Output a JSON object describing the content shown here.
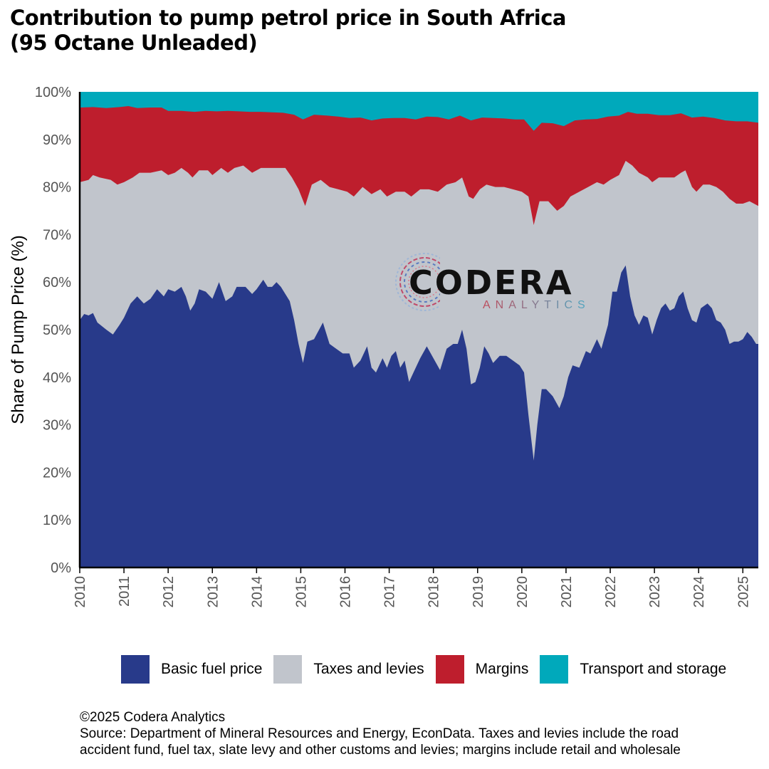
{
  "title_line1": "Contribution to pump petrol price in South Africa",
  "title_line2": "(95 Octane Unleaded)",
  "colors": {
    "basic": "#283a8a",
    "taxes": "#c1c5cc",
    "margins": "#be1e2d",
    "transport": "#00a9bb",
    "axis": "#000000",
    "tick_text": "#555555"
  },
  "logo": {
    "word": "CODERA",
    "sub": "ANALYTICS",
    "icon": "circuit-ring-icon"
  },
  "footer": {
    "line1": "©2025 Codera Analytics",
    "line2": "Source: Department of Mineral Resources and Energy, EconData. Taxes and levies include the road",
    "line3": "accident fund, fuel tax, slate levy and other customs and levies; margins include retail and wholesale"
  },
  "chart_data": {
    "type": "area",
    "stacked": true,
    "ylabel": "Share of Pump Price (%)",
    "xlabel": "",
    "ylim": [
      0,
      100
    ],
    "xlim": [
      2010.0,
      2025.35
    ],
    "y_ticks": [
      "0%",
      "10%",
      "20%",
      "30%",
      "40%",
      "50%",
      "60%",
      "70%",
      "80%",
      "90%",
      "100%"
    ],
    "x_ticks": [
      "2010",
      "2011",
      "2012",
      "2013",
      "2014",
      "2015",
      "2016",
      "2017",
      "2018",
      "2019",
      "2020",
      "2021",
      "2022",
      "2023",
      "2024",
      "2025"
    ],
    "legend_position": "bottom",
    "series": [
      {
        "name": "Basic fuel price",
        "color_key": "basic",
        "points": [
          [
            2010.0,
            52
          ],
          [
            2010.1,
            53.3
          ],
          [
            2010.2,
            53
          ],
          [
            2010.3,
            53.5
          ],
          [
            2010.4,
            51.5
          ],
          [
            2010.6,
            50
          ],
          [
            2010.75,
            49
          ],
          [
            2010.9,
            51
          ],
          [
            2011.0,
            52.5
          ],
          [
            2011.15,
            55.5
          ],
          [
            2011.3,
            57
          ],
          [
            2011.45,
            55.5
          ],
          [
            2011.6,
            56.5
          ],
          [
            2011.75,
            58.5
          ],
          [
            2011.9,
            57
          ],
          [
            2012.0,
            58.5
          ],
          [
            2012.15,
            58
          ],
          [
            2012.3,
            59
          ],
          [
            2012.4,
            57
          ],
          [
            2012.5,
            54
          ],
          [
            2012.6,
            55.5
          ],
          [
            2012.7,
            58.5
          ],
          [
            2012.85,
            58
          ],
          [
            2013.0,
            56.5
          ],
          [
            2013.15,
            60
          ],
          [
            2013.3,
            56
          ],
          [
            2013.45,
            57
          ],
          [
            2013.55,
            59
          ],
          [
            2013.75,
            59
          ],
          [
            2013.9,
            57.5
          ],
          [
            2014.0,
            58.5
          ],
          [
            2014.15,
            60.5
          ],
          [
            2014.25,
            59
          ],
          [
            2014.35,
            59
          ],
          [
            2014.45,
            60
          ],
          [
            2014.55,
            59
          ],
          [
            2014.65,
            57.5
          ],
          [
            2014.75,
            56
          ],
          [
            2014.85,
            52
          ],
          [
            2014.95,
            47
          ],
          [
            2015.05,
            43
          ],
          [
            2015.15,
            47.5
          ],
          [
            2015.3,
            48
          ],
          [
            2015.5,
            51.5
          ],
          [
            2015.65,
            47
          ],
          [
            2015.8,
            46
          ],
          [
            2015.95,
            45
          ],
          [
            2016.1,
            45
          ],
          [
            2016.2,
            42
          ],
          [
            2016.35,
            43.5
          ],
          [
            2016.5,
            46.5
          ],
          [
            2016.6,
            42
          ],
          [
            2016.7,
            41
          ],
          [
            2016.85,
            44
          ],
          [
            2016.95,
            42
          ],
          [
            2017.05,
            44.5
          ],
          [
            2017.15,
            45.5
          ],
          [
            2017.25,
            42
          ],
          [
            2017.35,
            43.5
          ],
          [
            2017.45,
            39
          ],
          [
            2017.55,
            41
          ],
          [
            2017.7,
            44
          ],
          [
            2017.85,
            46.5
          ],
          [
            2018.0,
            44
          ],
          [
            2018.15,
            41.5
          ],
          [
            2018.3,
            46
          ],
          [
            2018.45,
            47
          ],
          [
            2018.55,
            47
          ],
          [
            2018.65,
            50
          ],
          [
            2018.75,
            46
          ],
          [
            2018.85,
            38.5
          ],
          [
            2018.95,
            39
          ],
          [
            2019.05,
            42
          ],
          [
            2019.15,
            46.5
          ],
          [
            2019.25,
            45
          ],
          [
            2019.35,
            43
          ],
          [
            2019.5,
            44.5
          ],
          [
            2019.65,
            44.5
          ],
          [
            2019.8,
            43.5
          ],
          [
            2019.95,
            42.5
          ],
          [
            2020.05,
            41
          ],
          [
            2020.15,
            32
          ],
          [
            2020.27,
            22.5
          ],
          [
            2020.35,
            30
          ],
          [
            2020.45,
            37.5
          ],
          [
            2020.55,
            37.5
          ],
          [
            2020.7,
            36
          ],
          [
            2020.85,
            33.5
          ],
          [
            2020.95,
            36
          ],
          [
            2021.05,
            40
          ],
          [
            2021.15,
            42.5
          ],
          [
            2021.3,
            42
          ],
          [
            2021.45,
            45.5
          ],
          [
            2021.55,
            45
          ],
          [
            2021.7,
            48
          ],
          [
            2021.8,
            46
          ],
          [
            2021.95,
            51
          ],
          [
            2022.05,
            58
          ],
          [
            2022.15,
            58
          ],
          [
            2022.25,
            62
          ],
          [
            2022.35,
            63.5
          ],
          [
            2022.45,
            57
          ],
          [
            2022.55,
            53
          ],
          [
            2022.65,
            51
          ],
          [
            2022.75,
            53
          ],
          [
            2022.85,
            52.5
          ],
          [
            2022.95,
            49
          ],
          [
            2023.05,
            52
          ],
          [
            2023.15,
            54.5
          ],
          [
            2023.25,
            55.5
          ],
          [
            2023.35,
            54
          ],
          [
            2023.45,
            54.5
          ],
          [
            2023.55,
            57
          ],
          [
            2023.65,
            58
          ],
          [
            2023.75,
            54.5
          ],
          [
            2023.85,
            52
          ],
          [
            2023.95,
            51.5
          ],
          [
            2024.05,
            54.5
          ],
          [
            2024.2,
            55.5
          ],
          [
            2024.3,
            54.5
          ],
          [
            2024.4,
            52
          ],
          [
            2024.5,
            51.5
          ],
          [
            2024.6,
            50
          ],
          [
            2024.7,
            47
          ],
          [
            2024.8,
            47.5
          ],
          [
            2024.9,
            47.5
          ],
          [
            2025.0,
            48
          ],
          [
            2025.1,
            49.5
          ],
          [
            2025.2,
            48.5
          ],
          [
            2025.3,
            47
          ],
          [
            2025.35,
            47
          ]
        ]
      },
      {
        "name": "Taxes and levies",
        "color_key": "taxes",
        "points": [
          [
            2010.0,
            81
          ],
          [
            2010.2,
            81.5
          ],
          [
            2010.3,
            82.5
          ],
          [
            2010.45,
            82
          ],
          [
            2010.7,
            81.5
          ],
          [
            2010.85,
            80.5
          ],
          [
            2011.0,
            81
          ],
          [
            2011.2,
            82
          ],
          [
            2011.35,
            83
          ],
          [
            2011.6,
            83
          ],
          [
            2011.85,
            83.5
          ],
          [
            2012.0,
            82.5
          ],
          [
            2012.15,
            83
          ],
          [
            2012.3,
            84
          ],
          [
            2012.45,
            83
          ],
          [
            2012.55,
            82
          ],
          [
            2012.7,
            83.5
          ],
          [
            2012.9,
            83.5
          ],
          [
            2013.0,
            82.5
          ],
          [
            2013.2,
            84
          ],
          [
            2013.35,
            83
          ],
          [
            2013.5,
            84
          ],
          [
            2013.7,
            84.5
          ],
          [
            2013.9,
            83
          ],
          [
            2014.1,
            84
          ],
          [
            2014.3,
            84
          ],
          [
            2014.5,
            84
          ],
          [
            2014.65,
            84
          ],
          [
            2014.8,
            82
          ],
          [
            2014.95,
            79.5
          ],
          [
            2015.1,
            76
          ],
          [
            2015.25,
            80.5
          ],
          [
            2015.45,
            81.5
          ],
          [
            2015.65,
            80
          ],
          [
            2015.85,
            79.5
          ],
          [
            2016.05,
            79
          ],
          [
            2016.2,
            78
          ],
          [
            2016.4,
            80
          ],
          [
            2016.6,
            78.5
          ],
          [
            2016.8,
            79.5
          ],
          [
            2016.95,
            78
          ],
          [
            2017.15,
            79
          ],
          [
            2017.35,
            79
          ],
          [
            2017.5,
            78
          ],
          [
            2017.7,
            79.5
          ],
          [
            2017.9,
            79.5
          ],
          [
            2018.1,
            79
          ],
          [
            2018.3,
            80.5
          ],
          [
            2018.5,
            81
          ],
          [
            2018.65,
            82
          ],
          [
            2018.8,
            78
          ],
          [
            2018.9,
            77.5
          ],
          [
            2019.05,
            79.5
          ],
          [
            2019.2,
            80.5
          ],
          [
            2019.4,
            80
          ],
          [
            2019.6,
            80
          ],
          [
            2019.8,
            79.5
          ],
          [
            2020.0,
            79
          ],
          [
            2020.15,
            78
          ],
          [
            2020.27,
            72
          ],
          [
            2020.4,
            77
          ],
          [
            2020.6,
            77
          ],
          [
            2020.8,
            75
          ],
          [
            2020.95,
            76
          ],
          [
            2021.1,
            78
          ],
          [
            2021.3,
            79
          ],
          [
            2021.5,
            80
          ],
          [
            2021.7,
            81
          ],
          [
            2021.85,
            80.5
          ],
          [
            2022.0,
            81.5
          ],
          [
            2022.2,
            82.5
          ],
          [
            2022.35,
            85.5
          ],
          [
            2022.5,
            84.5
          ],
          [
            2022.65,
            83
          ],
          [
            2022.85,
            82
          ],
          [
            2022.95,
            81
          ],
          [
            2023.1,
            82
          ],
          [
            2023.3,
            82
          ],
          [
            2023.45,
            82
          ],
          [
            2023.6,
            83
          ],
          [
            2023.7,
            83.5
          ],
          [
            2023.85,
            80
          ],
          [
            2023.95,
            79
          ],
          [
            2024.1,
            80.5
          ],
          [
            2024.25,
            80.5
          ],
          [
            2024.4,
            80
          ],
          [
            2024.55,
            79
          ],
          [
            2024.7,
            77.5
          ],
          [
            2024.85,
            76.5
          ],
          [
            2025.0,
            76.5
          ],
          [
            2025.15,
            77
          ],
          [
            2025.35,
            76
          ]
        ]
      },
      {
        "name": "Margins",
        "color_key": "margins",
        "points": [
          [
            2010.0,
            96.7
          ],
          [
            2010.3,
            96.8
          ],
          [
            2010.6,
            96.6
          ],
          [
            2010.9,
            96.8
          ],
          [
            2011.1,
            97
          ],
          [
            2011.3,
            96.6
          ],
          [
            2011.6,
            96.7
          ],
          [
            2011.85,
            96.7
          ],
          [
            2012.0,
            96
          ],
          [
            2012.3,
            96
          ],
          [
            2012.6,
            95.8
          ],
          [
            2012.85,
            96
          ],
          [
            2013.1,
            95.9
          ],
          [
            2013.35,
            96
          ],
          [
            2013.6,
            95.9
          ],
          [
            2013.85,
            95.8
          ],
          [
            2014.1,
            95.8
          ],
          [
            2014.35,
            95.7
          ],
          [
            2014.6,
            95.6
          ],
          [
            2014.85,
            95.2
          ],
          [
            2015.05,
            94.2
          ],
          [
            2015.3,
            95.2
          ],
          [
            2015.6,
            95
          ],
          [
            2015.85,
            94.8
          ],
          [
            2016.1,
            94.5
          ],
          [
            2016.35,
            94.6
          ],
          [
            2016.6,
            94
          ],
          [
            2016.85,
            94.4
          ],
          [
            2017.1,
            94.5
          ],
          [
            2017.35,
            94.5
          ],
          [
            2017.6,
            94.2
          ],
          [
            2017.85,
            94.8
          ],
          [
            2018.1,
            94.7
          ],
          [
            2018.35,
            94.2
          ],
          [
            2018.6,
            95
          ],
          [
            2018.85,
            94
          ],
          [
            2019.1,
            94.6
          ],
          [
            2019.35,
            94.5
          ],
          [
            2019.6,
            94.4
          ],
          [
            2019.85,
            94.2
          ],
          [
            2020.05,
            94.2
          ],
          [
            2020.27,
            91.8
          ],
          [
            2020.45,
            93.5
          ],
          [
            2020.7,
            93.4
          ],
          [
            2020.95,
            92.8
          ],
          [
            2021.2,
            94
          ],
          [
            2021.45,
            94.2
          ],
          [
            2021.7,
            94.3
          ],
          [
            2021.95,
            94.8
          ],
          [
            2022.2,
            95
          ],
          [
            2022.4,
            95.8
          ],
          [
            2022.6,
            95.4
          ],
          [
            2022.85,
            95.4
          ],
          [
            2023.1,
            95.1
          ],
          [
            2023.35,
            95.1
          ],
          [
            2023.6,
            95.5
          ],
          [
            2023.85,
            94.6
          ],
          [
            2024.1,
            94.8
          ],
          [
            2024.35,
            94.5
          ],
          [
            2024.6,
            94
          ],
          [
            2024.85,
            93.8
          ],
          [
            2025.1,
            93.8
          ],
          [
            2025.35,
            93.5
          ]
        ]
      },
      {
        "name": "Transport and storage",
        "color_key": "transport",
        "points": [
          [
            2010.0,
            100
          ],
          [
            2025.35,
            100
          ]
        ]
      }
    ]
  }
}
